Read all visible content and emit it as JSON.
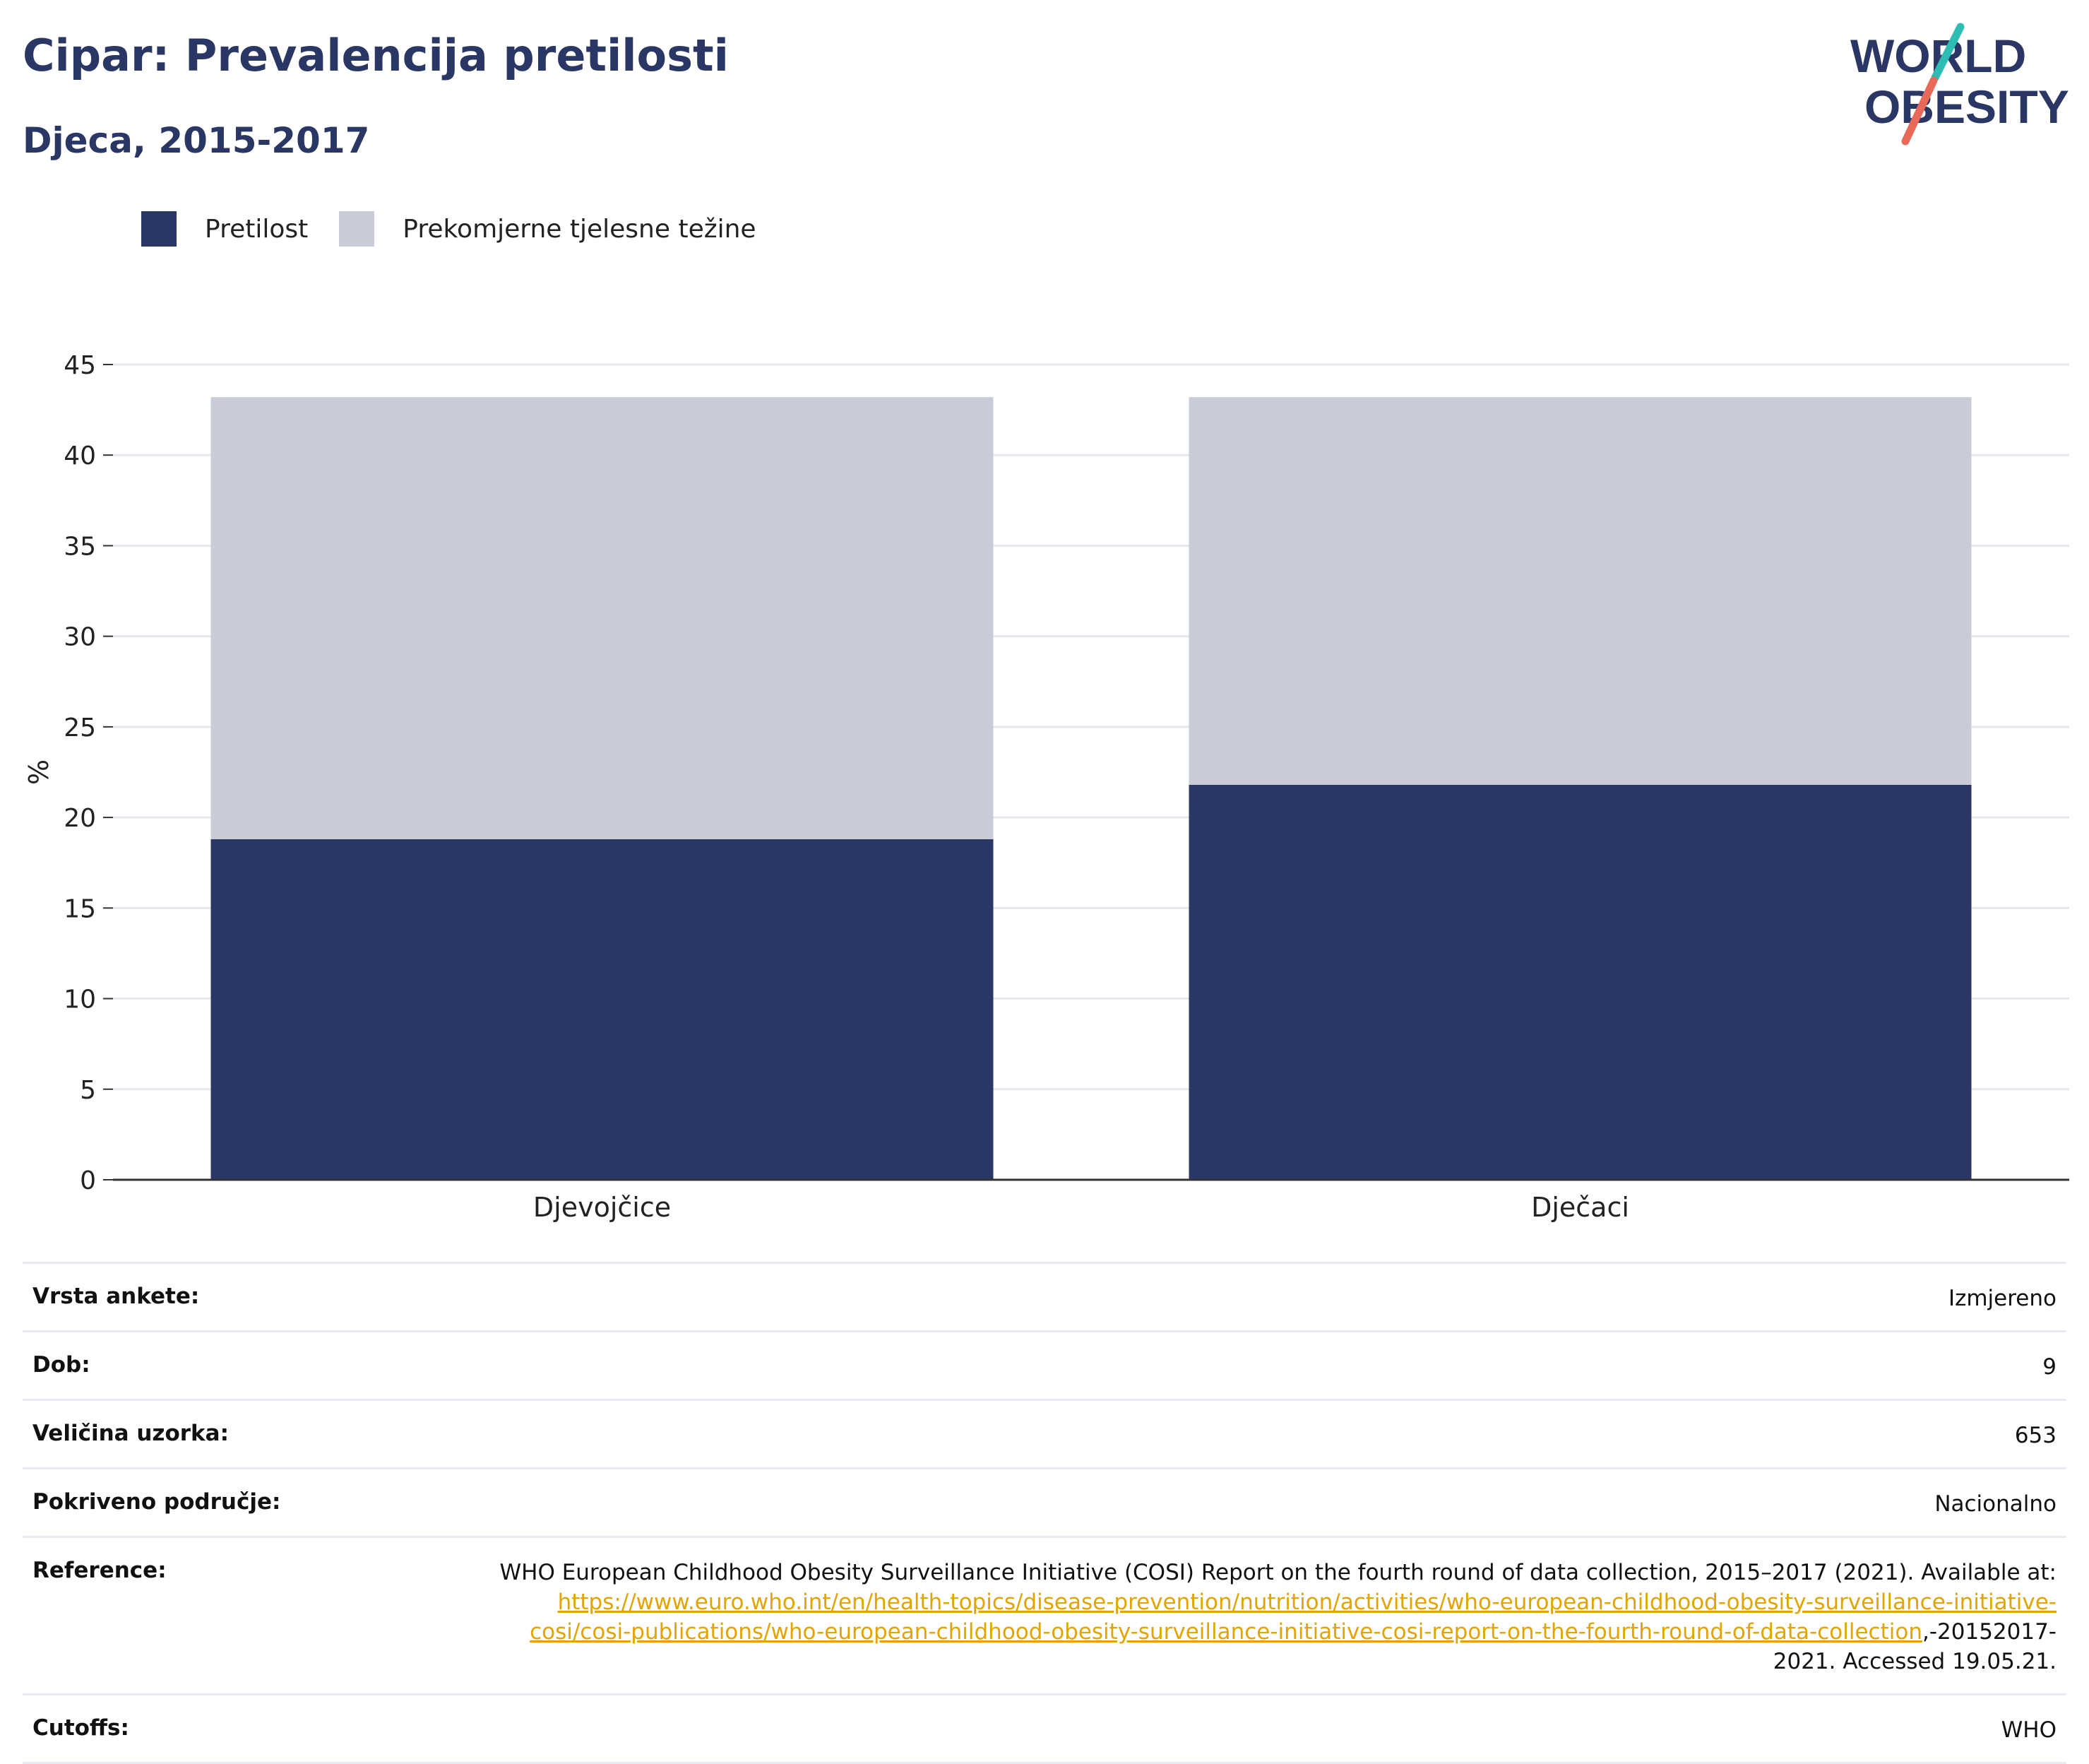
{
  "header": {
    "title": "Cipar: Prevalencija pretilosti",
    "subtitle": "Djeca, 2015-2017"
  },
  "logo": {
    "line1": "WORLD",
    "line2": "OBESITY",
    "colors": {
      "text": "#2a3663",
      "teal": "#2ebdb5",
      "coral": "#e8685a"
    }
  },
  "chart_data": {
    "type": "bar",
    "stacked": true,
    "categories": [
      "Djevojčice",
      "Dječaci"
    ],
    "series": [
      {
        "name": "Pretilost",
        "values": [
          18.8,
          21.8
        ],
        "color": "#2a3663"
      },
      {
        "name": "Prekomjerne tjelesne težine",
        "values": [
          24.4,
          21.4
        ],
        "color": "#c9ccd8"
      }
    ],
    "ylabel": "%",
    "xlabel": "",
    "ylim": [
      0,
      45
    ],
    "yticks": [
      0,
      5,
      10,
      15,
      20,
      25,
      30,
      35,
      40,
      45
    ],
    "grid": true,
    "legend_position": "top-left"
  },
  "meta": {
    "rows": [
      {
        "key": "Vrsta ankete:",
        "value": "Izmjereno"
      },
      {
        "key": "Dob:",
        "value": "9"
      },
      {
        "key": "Veličina uzorka:",
        "value": "653"
      },
      {
        "key": "Pokriveno područje:",
        "value": "Nacionalno"
      }
    ],
    "reference": {
      "key": "Reference:",
      "text_before": "WHO European Childhood Obesity Surveillance Initiative (COSI) Report on the fourth round of data collection, 2015–2017 (2021). Available at: ",
      "link": "https://www.euro.who.int/en/health-topics/disease-prevention/nutrition/activities/who-european-childhood-obesity-surveillance-initiative-cosi/cosi-publications/who-european-childhood-obesity-surveillance-initiative-cosi-report-on-the-fourth-round-of-data-collection",
      "text_after": ",-20152017-2021. Accessed 19.05.21."
    },
    "cutoffs": {
      "key": "Cutoffs:",
      "value": "WHO"
    }
  }
}
